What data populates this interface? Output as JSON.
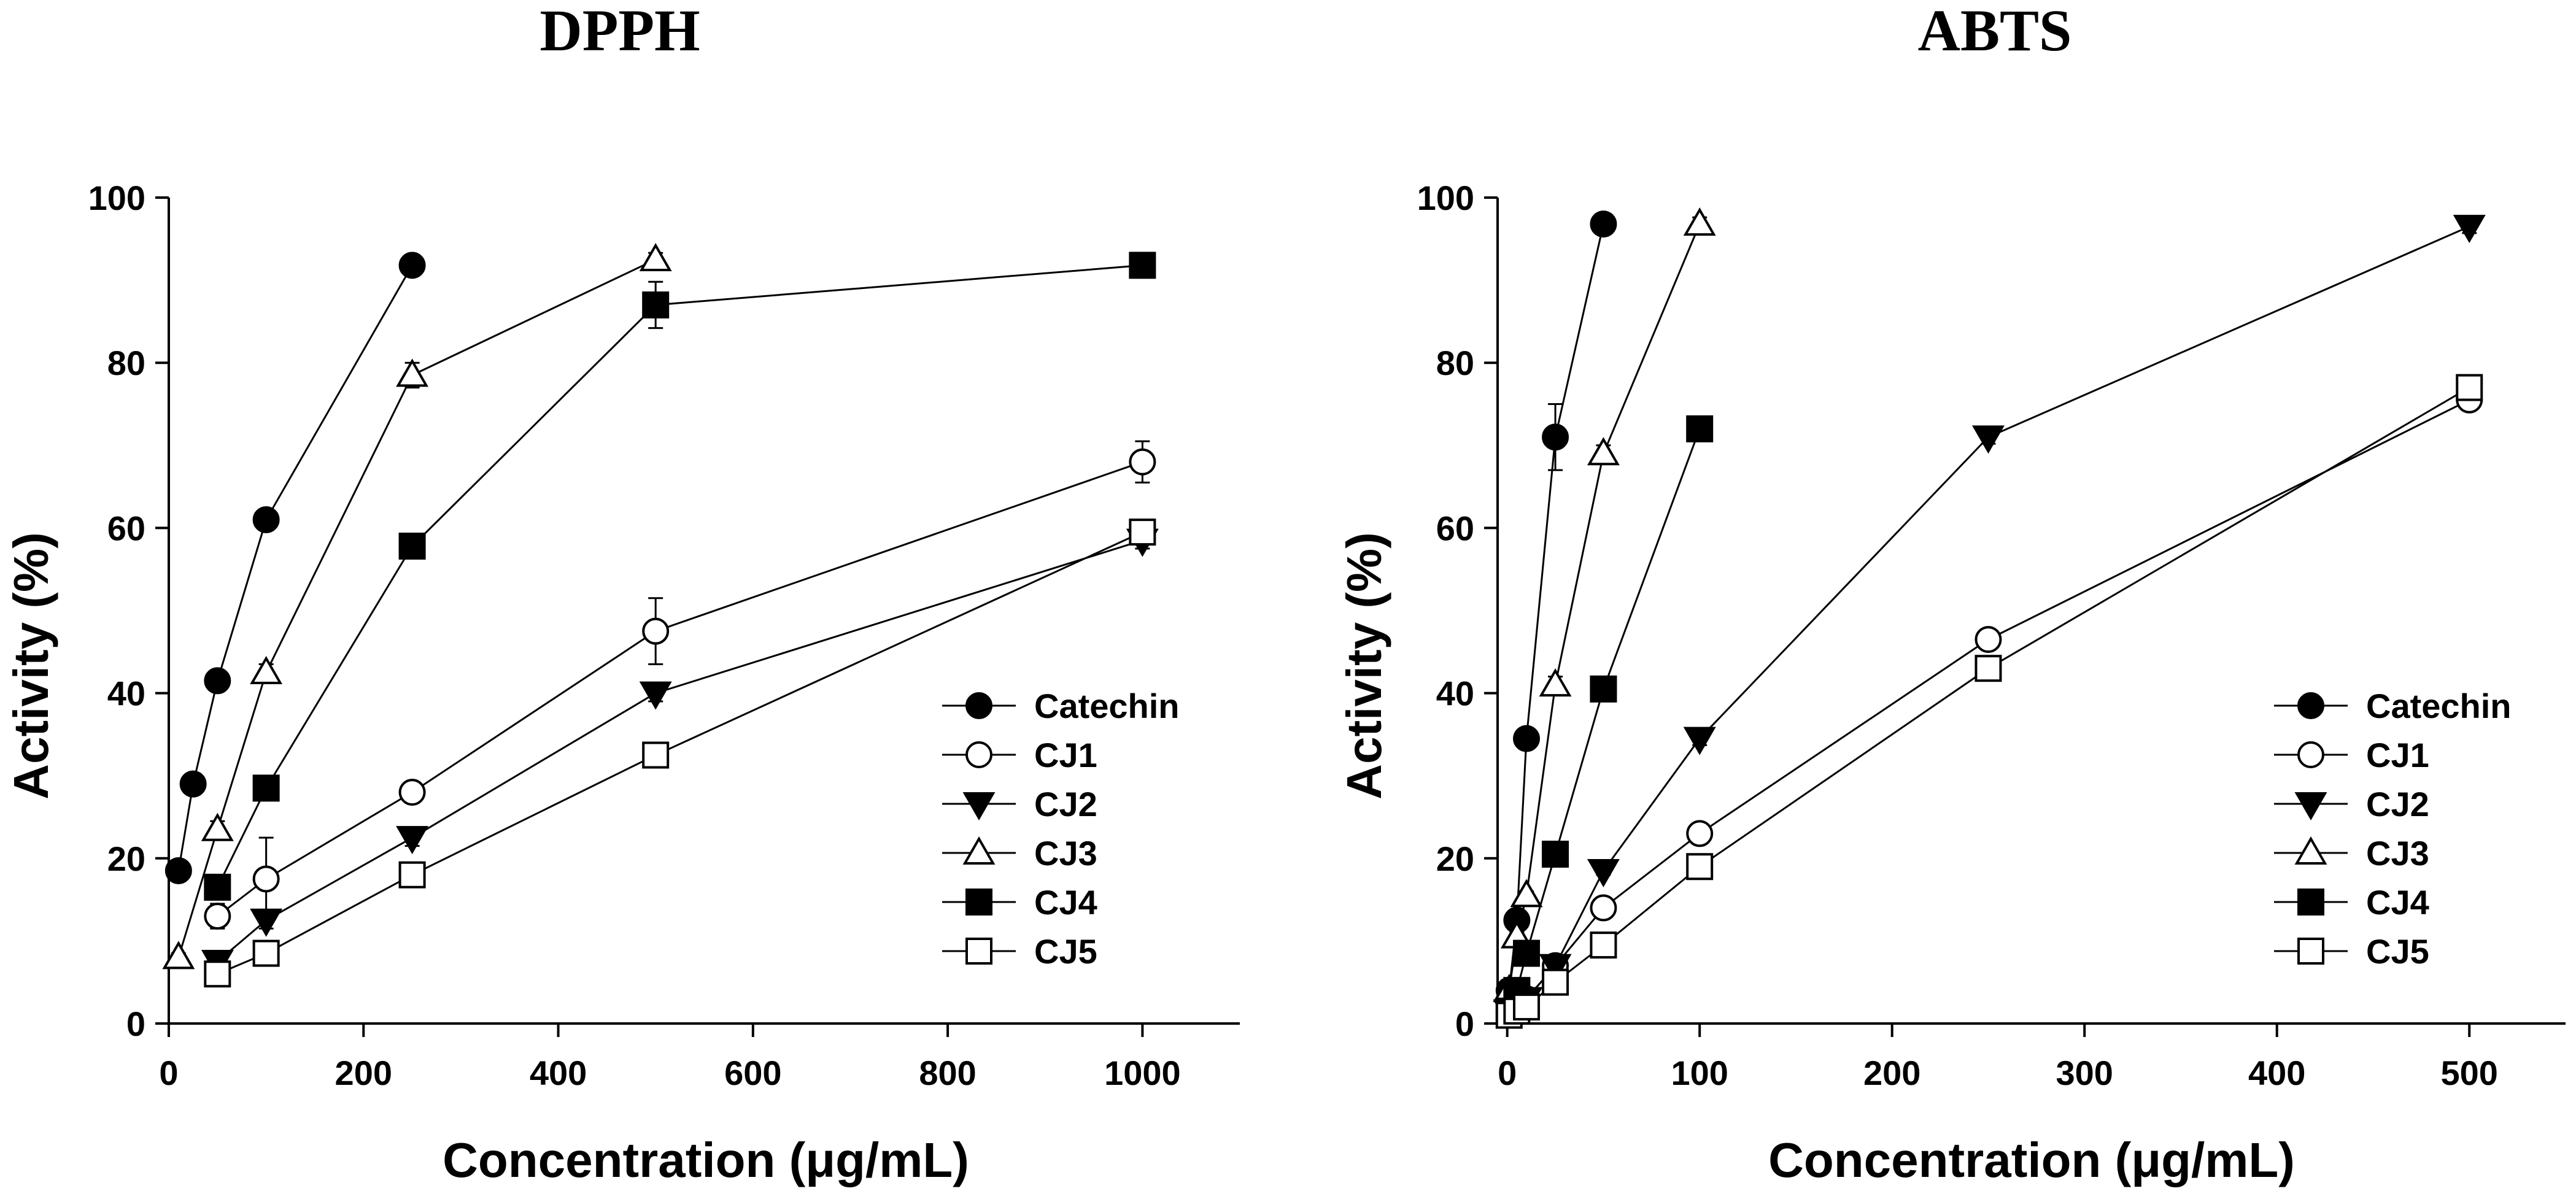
{
  "chart_data": [
    {
      "type": "line",
      "title": "DPPH",
      "xlabel": "Concentration (μg/mL)",
      "ylabel": "Activity (%)",
      "xlim": [
        0,
        1100
      ],
      "ylim": [
        0,
        100
      ],
      "xticks": [
        0,
        200,
        400,
        600,
        800,
        1000
      ],
      "yticks": [
        0,
        20,
        40,
        60,
        80,
        100
      ],
      "grid": false,
      "legend": "bottom-right",
      "series": [
        {
          "name": "Catechin",
          "marker": "circle",
          "filled": true,
          "x": [
            10,
            25,
            50,
            100,
            250
          ],
          "y": [
            18.5,
            29,
            41.5,
            61,
            91.8
          ],
          "err": [
            0.8,
            1.2,
            1.0,
            1.2,
            0.8
          ]
        },
        {
          "name": "CJ1",
          "marker": "circle",
          "filled": false,
          "x": [
            50,
            100,
            250,
            500,
            1000
          ],
          "y": [
            13,
            17.5,
            28,
            47.5,
            68
          ],
          "err": [
            1.5,
            5.0,
            1.0,
            4.0,
            2.5
          ]
        },
        {
          "name": "CJ2",
          "marker": "triangle-down",
          "filled": true,
          "x": [
            50,
            100,
            250,
            500,
            1000
          ],
          "y": [
            7.5,
            12.5,
            22.5,
            40,
            58.5
          ],
          "err": [
            0.5,
            1.0,
            1.0,
            1.0,
            1.0
          ]
        },
        {
          "name": "CJ3",
          "marker": "triangle-up",
          "filled": false,
          "x": [
            10,
            50,
            100,
            250,
            500
          ],
          "y": [
            8,
            23.5,
            42.5,
            78.5,
            92.5
          ],
          "err": [
            0.5,
            1.0,
            1.0,
            1.5,
            0.8
          ]
        },
        {
          "name": "CJ4",
          "marker": "square",
          "filled": true,
          "x": [
            50,
            100,
            250,
            500,
            1000
          ],
          "y": [
            16.5,
            28.5,
            57.8,
            87,
            91.8
          ],
          "err": [
            1.0,
            1.0,
            1.0,
            2.8,
            0.5
          ]
        },
        {
          "name": "CJ5",
          "marker": "square",
          "filled": false,
          "x": [
            50,
            100,
            250,
            500,
            1000
          ],
          "y": [
            6,
            8.5,
            18,
            32.5,
            59.5
          ],
          "err": [
            0.5,
            1.0,
            1.0,
            1.0,
            1.0
          ]
        }
      ]
    },
    {
      "type": "line",
      "title": "ABTS",
      "xlabel": "Concentration (μg/mL)",
      "ylabel": "Activity (%)",
      "xlim": [
        -5,
        550
      ],
      "ylim": [
        0,
        100
      ],
      "xticks": [
        0,
        100,
        200,
        300,
        400,
        500
      ],
      "yticks": [
        0,
        20,
        40,
        60,
        80,
        100
      ],
      "grid": false,
      "legend": "bottom-right",
      "series": [
        {
          "name": "Catechin",
          "marker": "circle",
          "filled": true,
          "x": [
            1,
            5,
            10,
            25,
            50
          ],
          "y": [
            4,
            12.5,
            34.5,
            71,
            96.8
          ],
          "err": [
            0.5,
            1.0,
            1.0,
            4.0,
            0.8
          ]
        },
        {
          "name": "CJ1",
          "marker": "circle",
          "filled": false,
          "x": [
            1,
            5,
            10,
            25,
            50,
            100,
            250,
            500
          ],
          "y": [
            1.5,
            2,
            3,
            7,
            14,
            23,
            46.5,
            75.5
          ],
          "err": [
            0.3,
            0.3,
            0.3,
            0.5,
            0.5,
            0.8,
            0.8,
            0.8
          ]
        },
        {
          "name": "CJ2",
          "marker": "triangle-down",
          "filled": true,
          "x": [
            1,
            5,
            10,
            25,
            50,
            100,
            250,
            500
          ],
          "y": [
            1.5,
            2,
            3,
            7,
            18.5,
            34.5,
            71,
            96.5
          ],
          "err": [
            0.3,
            0.3,
            0.3,
            0.5,
            0.5,
            0.8,
            0.8,
            0.8
          ]
        },
        {
          "name": "CJ3",
          "marker": "triangle-up",
          "filled": false,
          "x": [
            1,
            5,
            10,
            25,
            50,
            100
          ],
          "y": [
            4,
            10.5,
            15.5,
            41,
            69,
            96.8
          ],
          "err": [
            0.3,
            0.5,
            0.5,
            1.0,
            1.0,
            0.8
          ]
        },
        {
          "name": "CJ4",
          "marker": "square",
          "filled": true,
          "x": [
            1,
            5,
            10,
            25,
            50,
            100
          ],
          "y": [
            1.5,
            4,
            8.5,
            20.5,
            40.5,
            72
          ],
          "err": [
            0.3,
            0.3,
            0.5,
            0.8,
            0.8,
            0.8
          ]
        },
        {
          "name": "CJ5",
          "marker": "square",
          "filled": false,
          "x": [
            1,
            5,
            10,
            25,
            50,
            100,
            250,
            500
          ],
          "y": [
            1,
            1.5,
            2,
            5,
            9.5,
            19,
            43,
            77
          ],
          "err": [
            0.3,
            0.3,
            0.3,
            0.5,
            0.5,
            0.5,
            0.8,
            0.8
          ]
        }
      ]
    }
  ]
}
